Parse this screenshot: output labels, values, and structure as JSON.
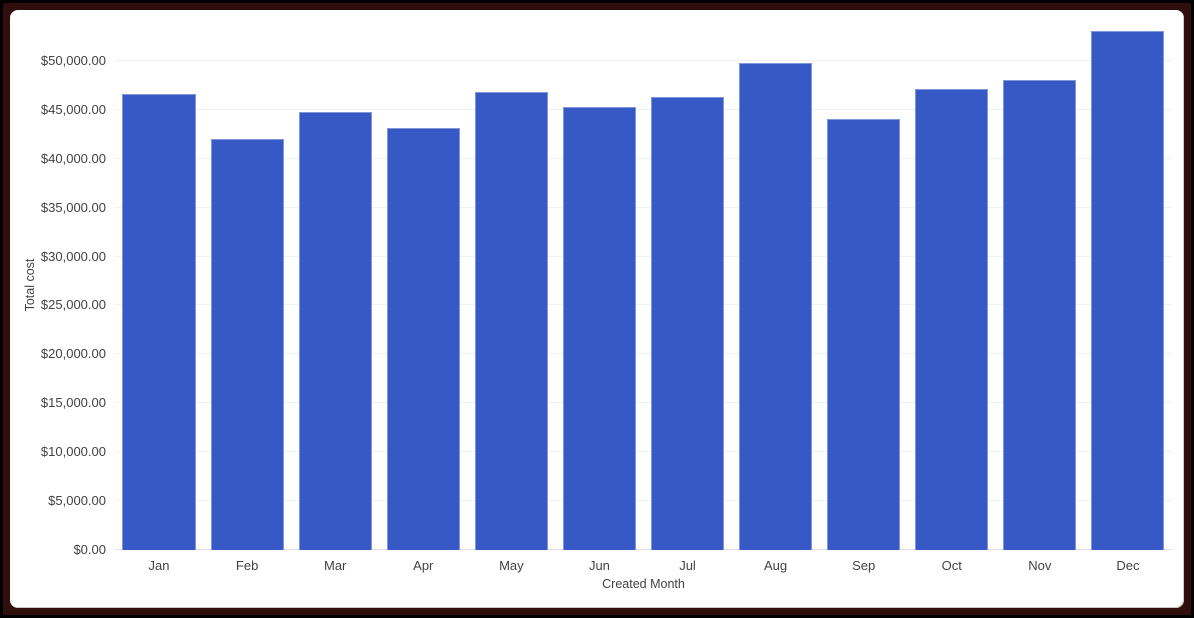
{
  "chart": {
    "y_axis_title": "Total cost",
    "x_axis_title": "Created Month"
  },
  "chart_data": {
    "type": "bar",
    "title": "",
    "xlabel": "Created Month",
    "ylabel": "Total cost",
    "categories": [
      "Jan",
      "Feb",
      "Mar",
      "Apr",
      "May",
      "Jun",
      "Jul",
      "Aug",
      "Sep",
      "Oct",
      "Nov",
      "Dec"
    ],
    "values": [
      46650,
      42050,
      44750,
      43150,
      46850,
      45250,
      46350,
      49750,
      44100,
      47150,
      48100,
      53050
    ],
    "ylim": [
      0,
      55000
    ],
    "y_ticks": [
      0,
      5000,
      10000,
      15000,
      20000,
      25000,
      30000,
      35000,
      40000,
      45000,
      50000
    ],
    "y_tick_labels": [
      "$0.00",
      "$5,000.00",
      "$10,000.00",
      "$15,000.00",
      "$20,000.00",
      "$25,000.00",
      "$30,000.00",
      "$35,000.00",
      "$40,000.00",
      "$45,000.00",
      "$50,000.00"
    ],
    "grid": true,
    "legend_position": "none",
    "colors": {
      "bar_fill": "#3659C5",
      "bar_stroke": "#8096DA",
      "gridline": "#F0F0F0",
      "baseline": "#E0E0E0",
      "axis_text": "#424242",
      "plot_background": "#FFFFFF",
      "frame_outer": "#000000",
      "frame_inner": "#300E0C"
    }
  }
}
